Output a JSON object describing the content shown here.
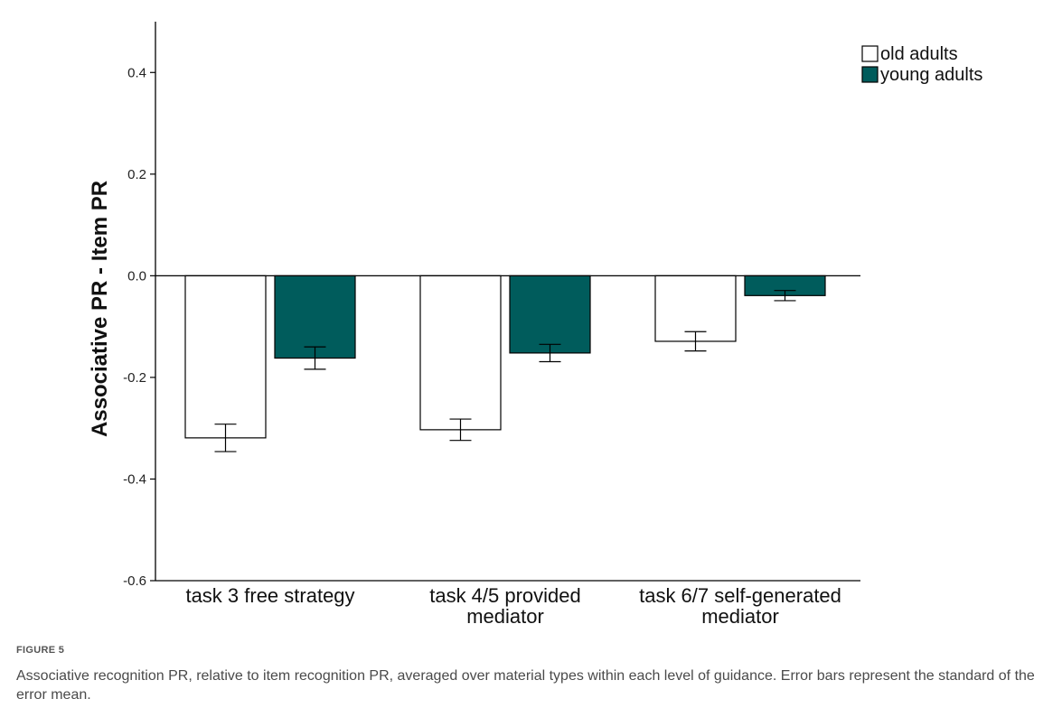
{
  "chart_data": {
    "type": "bar",
    "ylabel": "Associative PR - Item PR",
    "xlabel": "",
    "ylim": [
      -0.6,
      0.5
    ],
    "yticks": [
      {
        "value": -0.6,
        "label": "-0.6"
      },
      {
        "value": -0.4,
        "label": "-0.4"
      },
      {
        "value": -0.2,
        "label": "-0.2"
      },
      {
        "value": 0.0,
        "label": "0.0"
      },
      {
        "value": 0.2,
        "label": "0.2"
      },
      {
        "value": 0.4,
        "label": "0.4"
      }
    ],
    "categories": [
      [
        "task 3 free strategy"
      ],
      [
        "task 4/5 provided",
        "mediator"
      ],
      [
        "task 6/7 self-generated",
        "mediator"
      ]
    ],
    "series": [
      {
        "name": "old adults",
        "color": "#ffffff",
        "values": [
          -0.319,
          -0.303,
          -0.129
        ],
        "error": [
          0.027,
          0.021,
          0.019
        ]
      },
      {
        "name": "young adults",
        "color": "#005c5c",
        "values": [
          -0.162,
          -0.152,
          -0.039
        ],
        "error": [
          0.022,
          0.017,
          0.01
        ]
      }
    ],
    "legend_position": "top-right",
    "grid": false,
    "reference_line": 0.0
  },
  "caption": {
    "label": "FIGURE 5",
    "text": "Associative recognition PR, relative to item recognition PR, averaged over material types within each level of guidance. Error bars represent the standard of the error mean."
  }
}
